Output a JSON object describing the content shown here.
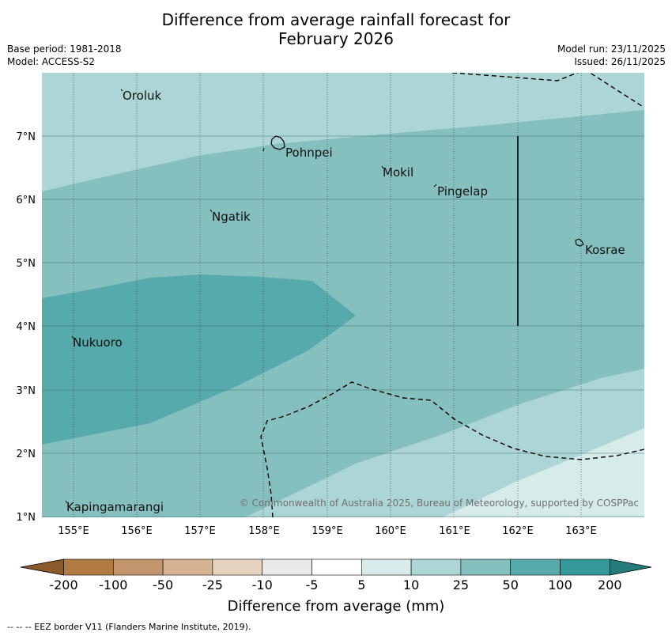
{
  "title": {
    "line1": "Difference from average rainfall forecast for",
    "line2": "February 2026"
  },
  "meta": {
    "base_period": "Base period: 1981-2018",
    "model": "Model: ACCESS-S2",
    "model_run": "Model run: 23/11/2025",
    "issued": "Issued: 26/11/2025"
  },
  "map": {
    "lon_ticks": [
      "155°E",
      "156°E",
      "157°E",
      "158°E",
      "159°E",
      "160°E",
      "161°E",
      "162°E",
      "163°E"
    ],
    "lat_ticks": [
      "7°N",
      "6°N",
      "5°N",
      "4°N",
      "3°N",
      "2°N",
      "1°N"
    ],
    "places": [
      {
        "name": "Oroluk"
      },
      {
        "name": "Pohnpei"
      },
      {
        "name": "Mokil"
      },
      {
        "name": "Pingelap"
      },
      {
        "name": "Ngatik"
      },
      {
        "name": "Kosrae"
      },
      {
        "name": "Nukuoro"
      },
      {
        "name": "Kapingamarangi"
      }
    ],
    "copyright": "© Commonwealth of Australia 2025, Bureau of Meteorology, supported by COSPPac",
    "colors": {
      "band_5_10": "#d6ebea",
      "band_10_25": "#acd6d5",
      "band_25_50": "#85c0bf",
      "band_50_100": "#57aaab"
    }
  },
  "colorbar": {
    "ticks": [
      "-200",
      "-100",
      "-50",
      "-25",
      "-10",
      "-5",
      "5",
      "10",
      "25",
      "50",
      "100",
      "200"
    ],
    "colors": [
      "#8b5a2b",
      "#b07a43",
      "#c3956c",
      "#d6b392",
      "#e5d3c0",
      "#e8e8e6",
      "#ffffff",
      "#d6ebea",
      "#acd6d5",
      "#85c0bf",
      "#57aaab",
      "#349a99",
      "#237b7a"
    ],
    "label": "Difference from average (mm)"
  },
  "footer": "--  --  -- EEZ border V11 (Flanders Marine Institute, 2019)."
}
